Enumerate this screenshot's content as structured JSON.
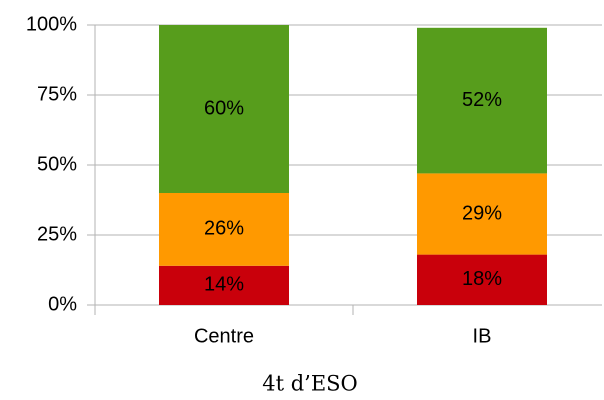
{
  "chart_data": {
    "type": "stacked_bar",
    "xlabel": "4t d’ESO",
    "categories": [
      "Centre",
      "IB"
    ],
    "series": [
      {
        "color": "#c9000b",
        "values": [
          14,
          18
        ],
        "value_labels": [
          "14%",
          "18%"
        ]
      },
      {
        "color": "#ff9900",
        "values": [
          26,
          29
        ],
        "value_labels": [
          "26%",
          "29%"
        ]
      },
      {
        "color": "#579d1c",
        "values": [
          60,
          52
        ],
        "value_labels": [
          "60%",
          "52%"
        ]
      }
    ],
    "ylim": [
      0,
      100
    ],
    "yticks": [
      {
        "value": 0,
        "label": "0%"
      },
      {
        "value": 25,
        "label": "25%"
      },
      {
        "value": 50,
        "label": "50%"
      },
      {
        "value": 75,
        "label": "75%"
      },
      {
        "value": 100,
        "label": "100%"
      }
    ],
    "grid": true
  }
}
